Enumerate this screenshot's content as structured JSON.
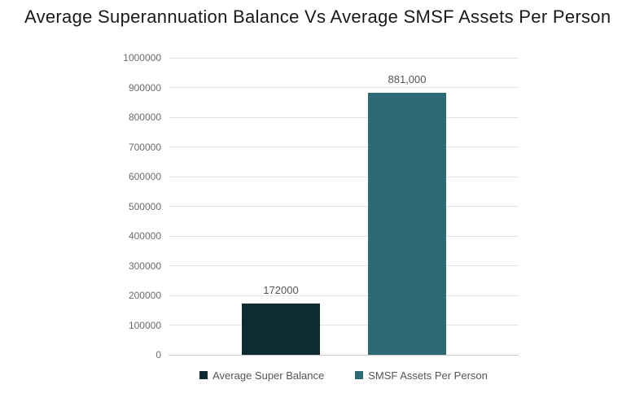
{
  "chart_data": {
    "type": "bar",
    "title": "Average Superannuation Balance Vs Average SMSF Assets Per Person",
    "categories": [
      "Average Super Balance",
      "SMSF Assets Per Person"
    ],
    "values": [
      172000,
      881000
    ],
    "value_labels": [
      "172000",
      "881,000"
    ],
    "bar_colors": [
      "#0d2b33",
      "#2e6a75"
    ],
    "xlabel": "",
    "ylabel": "",
    "ylim": [
      0,
      1000000
    ],
    "ytick_values": [
      0,
      100000,
      200000,
      300000,
      400000,
      500000,
      600000,
      700000,
      800000,
      900000,
      1000000
    ],
    "ytick_labels": [
      "0",
      "100000",
      "200000",
      "300000",
      "400000",
      "500000",
      "600000",
      "700000",
      "800000",
      "900000",
      "1000000"
    ],
    "grid": true,
    "legend_position": "bottom",
    "legend": [
      {
        "label": "Average Super Balance",
        "color": "#0d2b33"
      },
      {
        "label": "SMSF Assets Per Person",
        "color": "#2e6a75"
      }
    ]
  },
  "colors": {
    "background": "#ffffff",
    "title_text": "#1a1a1a",
    "axis_text": "#6b6b6b",
    "value_text": "#555555",
    "legend_text": "#555555",
    "gridline": "#e2e2e2",
    "zero_line": "#c9c9c9"
  }
}
